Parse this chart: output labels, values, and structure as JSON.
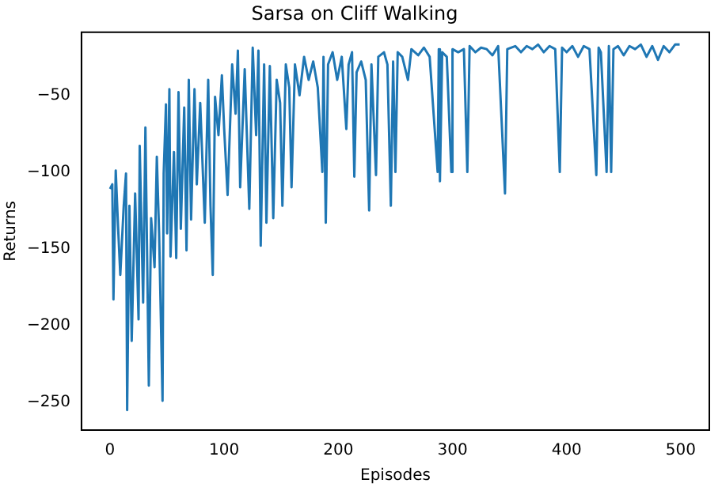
{
  "chart_data": {
    "type": "line",
    "title": "Sarsa on Cliff Walking",
    "xlabel": "Episodes",
    "ylabel": "Returns",
    "xlim": [
      -25,
      525
    ],
    "ylim": [
      -268,
      -9
    ],
    "xticks": [
      0,
      100,
      200,
      300,
      400,
      500
    ],
    "yticks": [
      -250,
      -200,
      -150,
      -100,
      -50
    ],
    "grid": false,
    "legend": false,
    "marker": "none",
    "line_style": "solid",
    "series": [
      {
        "color": "#1f77b4",
        "x": [
          0,
          2,
          3,
          5,
          7,
          9,
          12,
          14,
          15,
          17,
          19,
          22,
          25,
          26,
          29,
          31,
          34,
          36,
          39,
          41,
          43,
          46,
          47,
          49,
          50,
          52,
          53,
          56,
          58,
          60,
          62,
          65,
          67,
          69,
          71,
          74,
          76,
          79,
          83,
          86,
          88,
          90,
          92,
          95,
          98,
          100,
          103,
          107,
          110,
          112,
          114,
          118,
          122,
          125,
          128,
          130,
          132,
          135,
          137,
          140,
          143,
          146,
          149,
          151,
          154,
          157,
          159,
          162,
          166,
          170,
          174,
          178,
          182,
          186,
          187,
          189,
          191,
          195,
          199,
          203,
          207,
          209,
          212,
          214,
          216,
          220,
          224,
          227,
          229,
          233,
          235,
          240,
          243,
          246,
          248,
          250,
          252,
          256,
          261,
          264,
          270,
          275,
          280,
          287,
          288,
          289,
          291,
          295,
          299,
          300,
          305,
          310,
          313,
          315,
          320,
          325,
          330,
          335,
          340,
          346,
          348,
          355,
          360,
          365,
          370,
          375,
          380,
          385,
          390,
          394,
          396,
          400,
          405,
          410,
          415,
          420,
          426,
          428,
          430,
          435,
          437,
          439,
          441,
          445,
          450,
          455,
          460,
          465,
          470,
          475,
          480,
          485,
          490,
          495,
          499
        ],
        "values": [
          -111,
          -108,
          -183,
          -99,
          -135,
          -167,
          -122,
          -101,
          -255,
          -122,
          -210,
          -114,
          -196,
          -83,
          -185,
          -71,
          -239,
          -130,
          -162,
          -90,
          -140,
          -249,
          -101,
          -56,
          -140,
          -46,
          -155,
          -87,
          -156,
          -48,
          -137,
          -58,
          -151,
          -40,
          -131,
          -46,
          -108,
          -55,
          -133,
          -40,
          -122,
          -167,
          -51,
          -76,
          -37,
          -72,
          -115,
          -30,
          -62,
          -21,
          -110,
          -33,
          -124,
          -19,
          -76,
          -21,
          -148,
          -30,
          -133,
          -31,
          -130,
          -40,
          -55,
          -122,
          -30,
          -45,
          -110,
          -30,
          -50,
          -25,
          -40,
          -28,
          -45,
          -100,
          -25,
          -133,
          -30,
          -22,
          -40,
          -25,
          -72,
          -30,
          -22,
          -103,
          -35,
          -28,
          -40,
          -125,
          -30,
          -102,
          -25,
          -22,
          -30,
          -122,
          -28,
          -100,
          -22,
          -25,
          -40,
          -20,
          -24,
          -19,
          -25,
          -100,
          -20,
          -106,
          -22,
          -25,
          -100,
          -20,
          -22,
          -20,
          -100,
          -18,
          -22,
          -19,
          -20,
          -24,
          -18,
          -114,
          -20,
          -18,
          -22,
          -18,
          -20,
          -17,
          -22,
          -18,
          -20,
          -100,
          -19,
          -22,
          -18,
          -25,
          -18,
          -20,
          -102,
          -19,
          -22,
          -100,
          -18,
          -100,
          -20,
          -18,
          -24,
          -18,
          -20,
          -17,
          -25,
          -18,
          -27,
          -18,
          -22,
          -17,
          -17
        ]
      }
    ]
  }
}
